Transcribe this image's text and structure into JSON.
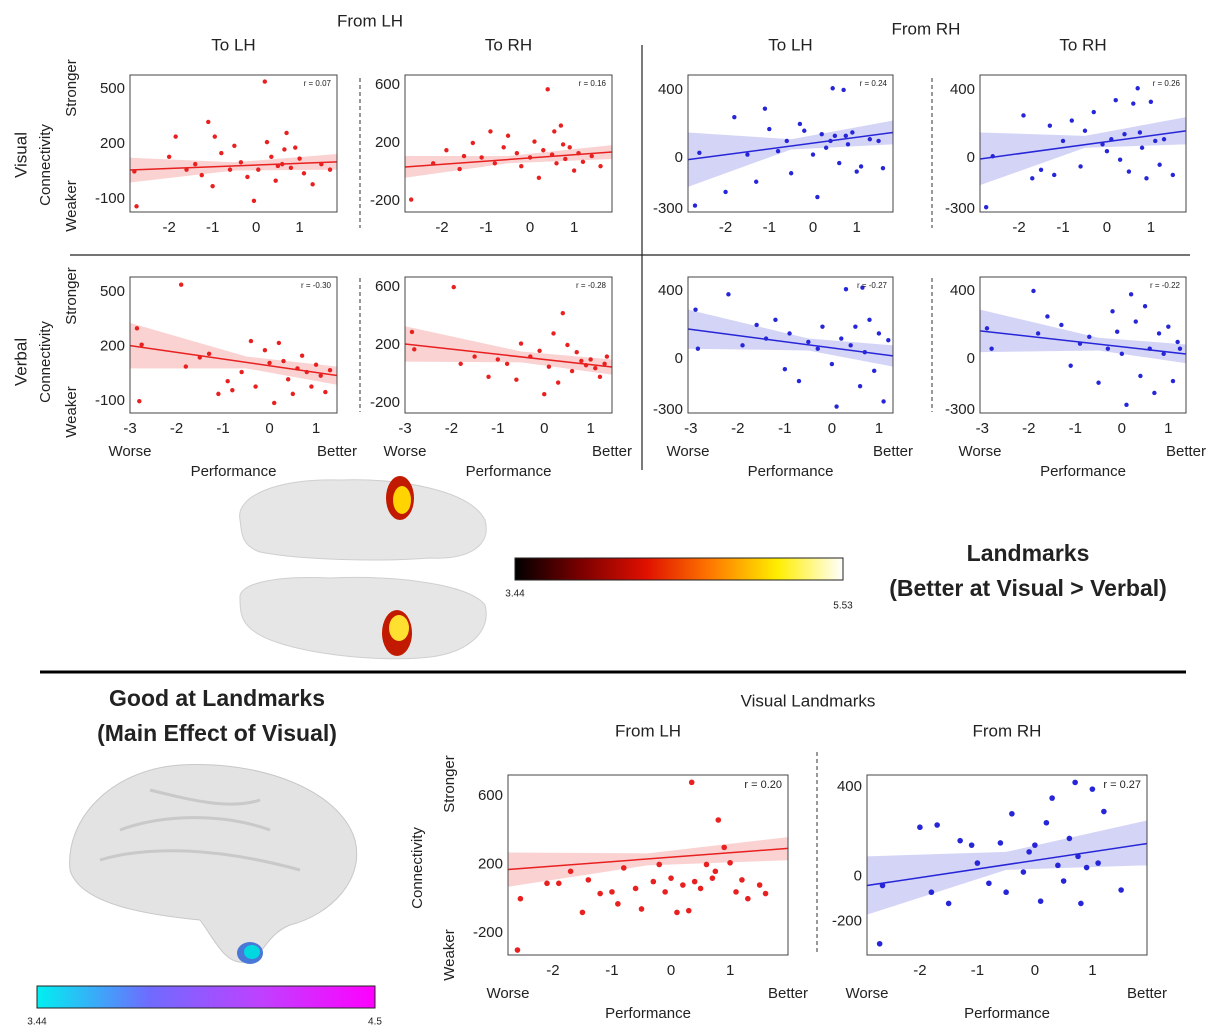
{
  "figure": {
    "top_headers": [
      "From LH",
      "From RH"
    ],
    "rows": [
      "Visual",
      "Verbal"
    ],
    "y_label": {
      "stronger": "Stronger",
      "middle": "Connectivity",
      "weaker": "Weaker"
    },
    "landmarks": {
      "title": "Landmarks",
      "subtitle": "(Better at Visual > Verbal)",
      "colorbar": {
        "lim": [
          3.44,
          5.53
        ],
        "colors": [
          "#000000",
          "#7a0000",
          "#e01000",
          "#ff7a00",
          "#ffee00",
          "#ffffff"
        ]
      }
    },
    "good": {
      "title": "Good at Landmarks",
      "subtitle": "(Main Effect of Visual)",
      "colorbar": {
        "lim": [
          3.44,
          4.5
        ],
        "colors": [
          "#00f0f0",
          "#6f6bff",
          "#c040ff",
          "#ff00ff"
        ]
      }
    },
    "bottom_header": "Visual Landmarks"
  },
  "chart_data": [
    {
      "type": "scatter",
      "title": "To LH",
      "annotation": "r = 0.07",
      "color": "#e82020",
      "xlim": [
        -2.9,
        1.86
      ],
      "ylim": [
        -171,
        576
      ],
      "xticks": [
        -2,
        -1,
        0,
        1
      ],
      "yticks": [
        -100,
        200,
        500
      ],
      "x": [
        -2.8,
        -2.75,
        -2.0,
        -1.85,
        -1.6,
        -1.4,
        -1.25,
        -1.1,
        -1.0,
        -0.95,
        -0.8,
        -0.6,
        -0.5,
        -0.35,
        -0.2,
        -0.05,
        0.05,
        0.2,
        0.25,
        0.35,
        0.45,
        0.5,
        0.6,
        0.65,
        0.7,
        0.8,
        0.9,
        1.0,
        1.1,
        1.3,
        1.5,
        1.7
      ],
      "values": [
        50,
        -140,
        130,
        240,
        60,
        90,
        30,
        320,
        -30,
        240,
        150,
        60,
        190,
        100,
        20,
        -110,
        60,
        540,
        210,
        130,
        0,
        80,
        90,
        170,
        260,
        70,
        180,
        120,
        40,
        -20,
        90,
        60
      ],
      "fit": {
        "x": [
          -2.9,
          1.86
        ],
        "y": [
          58,
          102
        ]
      },
      "band": {
        "x": [
          -2.9,
          -0.5,
          1.86
        ],
        "upper": [
          125,
          100,
          145
        ],
        "lower": [
          -10,
          55,
          60
        ]
      }
    },
    {
      "type": "scatter",
      "title": "To RH",
      "annotation": "r = 0.16",
      "color": "#e82020",
      "xlim": [
        -2.84,
        1.86
      ],
      "ylim": [
        -276,
        669
      ],
      "xticks": [
        -2,
        -1,
        0,
        1
      ],
      "yticks": [
        -200,
        200,
        600
      ],
      "x": [
        -2.7,
        -2.2,
        -1.9,
        -1.6,
        -1.5,
        -1.3,
        -1.1,
        -0.9,
        -0.8,
        -0.6,
        -0.5,
        -0.3,
        -0.2,
        0.0,
        0.1,
        0.2,
        0.3,
        0.4,
        0.5,
        0.55,
        0.6,
        0.7,
        0.75,
        0.8,
        0.9,
        1.0,
        1.1,
        1.2,
        1.4,
        1.6
      ],
      "values": [
        -190,
        60,
        150,
        20,
        110,
        200,
        100,
        280,
        60,
        170,
        250,
        130,
        40,
        100,
        210,
        -40,
        150,
        570,
        120,
        280,
        60,
        320,
        190,
        90,
        170,
        10,
        130,
        70,
        110,
        40
      ],
      "fit": {
        "x": [
          -2.84,
          1.86
        ],
        "y": [
          34,
          138
        ]
      },
      "band": {
        "x": [
          -2.84,
          -0.5,
          1.86
        ],
        "upper": [
          110,
          110,
          185
        ],
        "lower": [
          -40,
          60,
          90
        ]
      }
    },
    {
      "type": "scatter",
      "title": "To LH",
      "annotation": "r = 0.24",
      "color": "#2626d8",
      "xlim": [
        -2.86,
        1.83
      ],
      "ylim": [
        -318,
        488
      ],
      "xticks": [
        -2,
        -1,
        0,
        1
      ],
      "yticks": [
        -300,
        0,
        400
      ],
      "x": [
        -2.7,
        -2.6,
        -2.0,
        -1.8,
        -1.5,
        -1.3,
        -1.1,
        -1.0,
        -0.8,
        -0.6,
        -0.5,
        -0.3,
        -0.2,
        0.0,
        0.1,
        0.2,
        0.3,
        0.4,
        0.45,
        0.5,
        0.6,
        0.7,
        0.75,
        0.8,
        0.9,
        1.0,
        1.1,
        1.3,
        1.5,
        1.6
      ],
      "values": [
        -280,
        30,
        -200,
        240,
        20,
        -140,
        290,
        170,
        40,
        100,
        -90,
        200,
        160,
        20,
        -230,
        140,
        60,
        100,
        410,
        130,
        -30,
        400,
        130,
        80,
        150,
        -80,
        -50,
        110,
        100,
        -60
      ],
      "fit": {
        "x": [
          -2.86,
          1.83
        ],
        "y": [
          -10,
          150
        ]
      },
      "band": {
        "x": [
          -2.86,
          -0.5,
          1.83
        ],
        "upper": [
          150,
          110,
          220
        ],
        "lower": [
          -170,
          50,
          80
        ]
      }
    },
    {
      "type": "scatter",
      "title": "To RH",
      "annotation": "r = 0.26",
      "color": "#2626d8",
      "xlim": [
        -2.89,
        1.8
      ],
      "ylim": [
        -318,
        488
      ],
      "xticks": [
        -2,
        -1,
        0,
        1
      ],
      "yticks": [
        -300,
        0,
        400
      ],
      "x": [
        -2.75,
        -2.6,
        -1.9,
        -1.7,
        -1.5,
        -1.3,
        -1.2,
        -1.0,
        -0.8,
        -0.6,
        -0.5,
        -0.3,
        -0.1,
        0.0,
        0.1,
        0.2,
        0.3,
        0.4,
        0.5,
        0.6,
        0.7,
        0.75,
        0.8,
        0.9,
        1.0,
        1.1,
        1.2,
        1.3,
        1.5
      ],
      "values": [
        -290,
        10,
        250,
        -120,
        -70,
        190,
        -100,
        100,
        220,
        -50,
        160,
        270,
        80,
        40,
        110,
        340,
        -10,
        140,
        -80,
        320,
        410,
        150,
        60,
        -120,
        330,
        100,
        -40,
        110,
        -100
      ],
      "fit": {
        "x": [
          -2.89,
          1.8
        ],
        "y": [
          -6,
          159
        ]
      },
      "band": {
        "x": [
          -2.89,
          -0.5,
          1.8
        ],
        "upper": [
          150,
          130,
          240
        ],
        "lower": [
          -160,
          60,
          80
        ]
      }
    },
    {
      "type": "scatter",
      "annotation": "r = -0.30",
      "color": "#e82020",
      "x_label": "Performance",
      "x_low": "Worse",
      "x_high": "Better",
      "xlim": [
        -3,
        1.45
      ],
      "ylim": [
        -165,
        582
      ],
      "xticks": [
        -3,
        -2,
        -1,
        0,
        1
      ],
      "yticks": [
        -100,
        200,
        500
      ],
      "x": [
        -2.85,
        -2.8,
        -2.75,
        -1.9,
        -1.8,
        -1.5,
        -1.3,
        -1.1,
        -0.9,
        -0.8,
        -0.6,
        -0.4,
        -0.3,
        -0.1,
        0.0,
        0.1,
        0.2,
        0.3,
        0.4,
        0.5,
        0.6,
        0.7,
        0.8,
        0.9,
        1.0,
        1.1,
        1.2,
        1.3
      ],
      "values": [
        300,
        -100,
        210,
        540,
        90,
        140,
        160,
        -60,
        10,
        -40,
        60,
        230,
        -20,
        180,
        110,
        -110,
        220,
        120,
        20,
        -60,
        80,
        150,
        60,
        -20,
        100,
        40,
        -50,
        70
      ],
      "fit": {
        "x": [
          -3,
          1.45
        ],
        "y": [
          205,
          41
        ]
      },
      "band": {
        "x": [
          -3,
          -0.5,
          1.45
        ],
        "upper": [
          330,
          145,
          90
        ],
        "lower": [
          80,
          80,
          -10
        ]
      }
    },
    {
      "type": "scatter",
      "annotation": "r = -0.28",
      "color": "#e82020",
      "x_label": "Performance",
      "x_low": "Worse",
      "x_high": "Better",
      "xlim": [
        -3,
        1.46
      ],
      "ylim": [
        -270,
        670
      ],
      "xticks": [
        -3,
        -2,
        -1,
        0,
        1
      ],
      "yticks": [
        -200,
        200,
        600
      ],
      "x": [
        -2.85,
        -2.8,
        -1.95,
        -1.8,
        -1.5,
        -1.2,
        -1.0,
        -0.8,
        -0.6,
        -0.5,
        -0.3,
        -0.1,
        0.0,
        0.1,
        0.2,
        0.3,
        0.4,
        0.5,
        0.6,
        0.7,
        0.8,
        0.9,
        1.0,
        1.1,
        1.2,
        1.3,
        1.35
      ],
      "values": [
        290,
        170,
        600,
        70,
        120,
        -20,
        100,
        70,
        -40,
        210,
        120,
        160,
        -140,
        50,
        280,
        -60,
        420,
        200,
        20,
        150,
        90,
        60,
        100,
        40,
        -20,
        70,
        120
      ],
      "fit": {
        "x": [
          -3,
          1.46
        ],
        "y": [
          207,
          48
        ]
      },
      "band": {
        "x": [
          -3,
          -0.5,
          1.46
        ],
        "upper": [
          330,
          155,
          100
        ],
        "lower": [
          85,
          80,
          -5
        ]
      }
    },
    {
      "type": "scatter",
      "annotation": "r = -0.27",
      "color": "#2626d8",
      "x_label": "Performance",
      "x_low": "Worse",
      "x_high": "Better",
      "xlim": [
        -3.06,
        1.3
      ],
      "ylim": [
        -318,
        482
      ],
      "xticks": [
        -3,
        -2,
        -1,
        0,
        1
      ],
      "yticks": [
        -300,
        0,
        400
      ],
      "x": [
        -2.9,
        -2.85,
        -2.2,
        -1.9,
        -1.6,
        -1.4,
        -1.2,
        -1.0,
        -0.9,
        -0.7,
        -0.5,
        -0.3,
        -0.2,
        0.0,
        0.1,
        0.2,
        0.3,
        0.4,
        0.5,
        0.6,
        0.65,
        0.7,
        0.8,
        0.9,
        1.0,
        1.1,
        1.2
      ],
      "values": [
        290,
        60,
        380,
        80,
        200,
        120,
        230,
        -60,
        150,
        -130,
        100,
        60,
        190,
        -30,
        -280,
        120,
        410,
        80,
        190,
        -160,
        420,
        40,
        230,
        -70,
        150,
        -250,
        110
      ],
      "fit": {
        "x": [
          -3.06,
          1.3
        ],
        "y": [
          176,
          18
        ]
      },
      "band": {
        "x": [
          -3.06,
          -0.5,
          1.3
        ],
        "upper": [
          290,
          120,
          80
        ],
        "lower": [
          60,
          50,
          -45
        ]
      }
    },
    {
      "type": "scatter",
      "annotation": "r = -0.22",
      "color": "#2626d8",
      "x_label": "Performance",
      "x_low": "Worse",
      "x_high": "Better",
      "xlim": [
        -3.05,
        1.38
      ],
      "ylim": [
        -318,
        482
      ],
      "xticks": [
        -3,
        -2,
        -1,
        0,
        1
      ],
      "yticks": [
        -300,
        0,
        400
      ],
      "x": [
        -2.9,
        -2.8,
        -1.9,
        -1.8,
        -1.6,
        -1.3,
        -1.1,
        -0.9,
        -0.7,
        -0.5,
        -0.3,
        -0.2,
        -0.1,
        0.0,
        0.1,
        0.2,
        0.3,
        0.4,
        0.5,
        0.6,
        0.7,
        0.8,
        0.9,
        1.0,
        1.1,
        1.2,
        1.25
      ],
      "values": [
        180,
        60,
        400,
        150,
        250,
        200,
        -40,
        90,
        130,
        -140,
        60,
        280,
        160,
        30,
        -270,
        380,
        220,
        -100,
        310,
        60,
        -200,
        150,
        30,
        190,
        -130,
        100,
        60
      ],
      "fit": {
        "x": [
          -3.05,
          1.38
        ],
        "y": [
          165,
          29
        ]
      },
      "band": {
        "x": [
          -3.05,
          -0.5,
          1.38
        ],
        "upper": [
          290,
          125,
          85
        ],
        "lower": [
          40,
          50,
          -25
        ]
      }
    },
    {
      "type": "scatter",
      "title": "From LH",
      "annotation": "r = 0.20",
      "color": "#e82020",
      "x_label": "Performance",
      "x_low": "Worse",
      "x_high": "Better",
      "xlim": [
        -2.76,
        1.98
      ],
      "ylim": [
        -329,
        723
      ],
      "xticks": [
        -2,
        -1,
        0,
        1
      ],
      "yticks": [
        -200,
        200,
        600
      ],
      "x": [
        -2.6,
        -2.55,
        -2.1,
        -1.9,
        -1.7,
        -1.5,
        -1.4,
        -1.2,
        -1.0,
        -0.9,
        -0.8,
        -0.6,
        -0.5,
        -0.3,
        -0.2,
        -0.1,
        0.0,
        0.1,
        0.2,
        0.3,
        0.35,
        0.4,
        0.5,
        0.6,
        0.7,
        0.75,
        0.8,
        0.9,
        1.0,
        1.1,
        1.2,
        1.3,
        1.5,
        1.6
      ],
      "values": [
        -300,
        0,
        90,
        90,
        160,
        -80,
        110,
        30,
        40,
        -30,
        180,
        60,
        -60,
        100,
        200,
        40,
        120,
        -80,
        80,
        -70,
        680,
        100,
        60,
        200,
        120,
        160,
        460,
        300,
        210,
        40,
        110,
        0,
        80,
        30
      ],
      "fit": {
        "x": [
          -2.76,
          1.98
        ],
        "y": [
          171,
          294
        ]
      },
      "band": {
        "x": [
          -2.76,
          -0.4,
          1.98
        ],
        "upper": [
          270,
          265,
          360
        ],
        "lower": [
          70,
          195,
          225
        ]
      }
    },
    {
      "type": "scatter",
      "title": "From RH",
      "annotation": "r = 0.27",
      "color": "#2626d8",
      "x_label": "Performance",
      "x_low": "Worse",
      "x_high": "Better",
      "xlim": [
        -2.92,
        1.95
      ],
      "ylim": [
        -350,
        453
      ],
      "xticks": [
        -2,
        -1,
        0,
        1
      ],
      "yticks": [
        -200,
        0,
        400
      ],
      "x": [
        -2.7,
        -2.65,
        -2.0,
        -1.8,
        -1.7,
        -1.5,
        -1.3,
        -1.1,
        -1.0,
        -0.8,
        -0.6,
        -0.5,
        -0.4,
        -0.2,
        -0.1,
        0.0,
        0.1,
        0.2,
        0.3,
        0.4,
        0.5,
        0.6,
        0.7,
        0.75,
        0.8,
        0.9,
        1.0,
        1.1,
        1.2,
        1.5
      ],
      "values": [
        -300,
        -40,
        220,
        -70,
        230,
        -120,
        160,
        140,
        60,
        -30,
        150,
        -70,
        280,
        20,
        110,
        140,
        -110,
        240,
        350,
        50,
        -20,
        170,
        420,
        90,
        -120,
        40,
        390,
        60,
        290,
        -60
      ],
      "fit": {
        "x": [
          -2.92,
          1.95
        ],
        "y": [
          -40,
          147
        ]
      },
      "band": {
        "x": [
          -2.92,
          -0.5,
          1.95
        ],
        "upper": [
          90,
          110,
          250
        ],
        "lower": [
          -170,
          30,
          50
        ]
      }
    }
  ]
}
